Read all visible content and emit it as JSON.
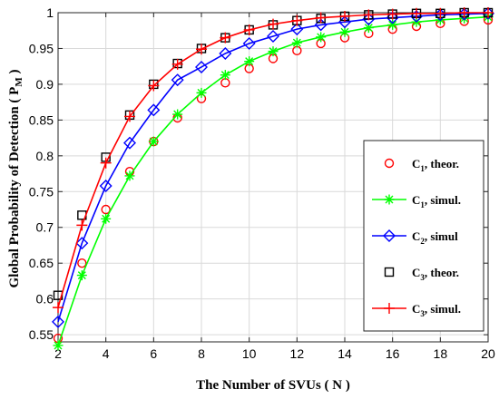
{
  "chart_data": {
    "type": "line",
    "title": "",
    "xlabel": "The Number of SVUs ( N )",
    "ylabel_main": "Global Probability of Detection ( P",
    "ylabel_sub": "M",
    "ylabel_end": " )",
    "xlim": [
      2,
      20
    ],
    "ylim": [
      0.54,
      1.0
    ],
    "xticks": [
      2,
      4,
      6,
      8,
      10,
      12,
      14,
      16,
      18,
      20
    ],
    "yticks": [
      0.55,
      0.6,
      0.65,
      0.7,
      0.75,
      0.8,
      0.85,
      0.9,
      0.95,
      1
    ],
    "ytick_labels": [
      "0.55",
      "0.6",
      "0.65",
      "0.7",
      "0.75",
      "0.8",
      "0.85",
      "0.9",
      "0.95",
      "1"
    ],
    "grid": true,
    "legend_position": "right-center",
    "x": [
      2,
      3,
      4,
      5,
      6,
      7,
      8,
      9,
      10,
      11,
      12,
      13,
      14,
      15,
      16,
      17,
      18,
      19,
      20
    ],
    "series": [
      {
        "name_main": "C",
        "name_sub": "1",
        "name_rest": ", theor.",
        "color": "#ff0000",
        "marker": "circle",
        "line": false,
        "values": [
          0.545,
          0.65,
          0.725,
          0.778,
          0.82,
          0.853,
          0.88,
          0.902,
          0.922,
          0.936,
          0.947,
          0.957,
          0.965,
          0.971,
          0.977,
          0.981,
          0.985,
          0.988,
          0.99
        ]
      },
      {
        "name_main": "C",
        "name_sub": "1",
        "name_rest": ", simul.",
        "color": "#00ff00",
        "marker": "star",
        "line": true,
        "values": [
          0.535,
          0.633,
          0.712,
          0.772,
          0.82,
          0.858,
          0.888,
          0.913,
          0.932,
          0.946,
          0.958,
          0.966,
          0.973,
          0.979,
          0.983,
          0.987,
          0.99,
          0.992,
          0.994
        ]
      },
      {
        "name_main": "C",
        "name_sub": "2",
        "name_rest": ", simul",
        "color": "#0000ff",
        "marker": "diamond",
        "line": true,
        "values": [
          0.568,
          0.678,
          0.758,
          0.818,
          0.864,
          0.906,
          0.924,
          0.943,
          0.957,
          0.967,
          0.977,
          0.983,
          0.987,
          0.991,
          0.993,
          0.995,
          0.997,
          0.998,
          0.999
        ]
      },
      {
        "name_main": "C",
        "name_sub": "3",
        "name_rest": ", theor.",
        "color": "#000000",
        "marker": "square",
        "line": false,
        "values": [
          0.605,
          0.717,
          0.798,
          0.857,
          0.9,
          0.929,
          0.95,
          0.965,
          0.976,
          0.983,
          0.989,
          0.992,
          0.995,
          0.997,
          0.998,
          0.999,
          0.999,
          1.0,
          1.0
        ]
      },
      {
        "name_main": "C",
        "name_sub": "3",
        "name_rest": ", simul.",
        "color": "#ff0000",
        "marker": "plus",
        "line": true,
        "values": [
          0.588,
          0.703,
          0.79,
          0.855,
          0.898,
          0.928,
          0.949,
          0.965,
          0.976,
          0.984,
          0.989,
          0.993,
          0.995,
          0.997,
          0.998,
          0.999,
          0.999,
          1.0,
          1.0
        ]
      }
    ]
  }
}
